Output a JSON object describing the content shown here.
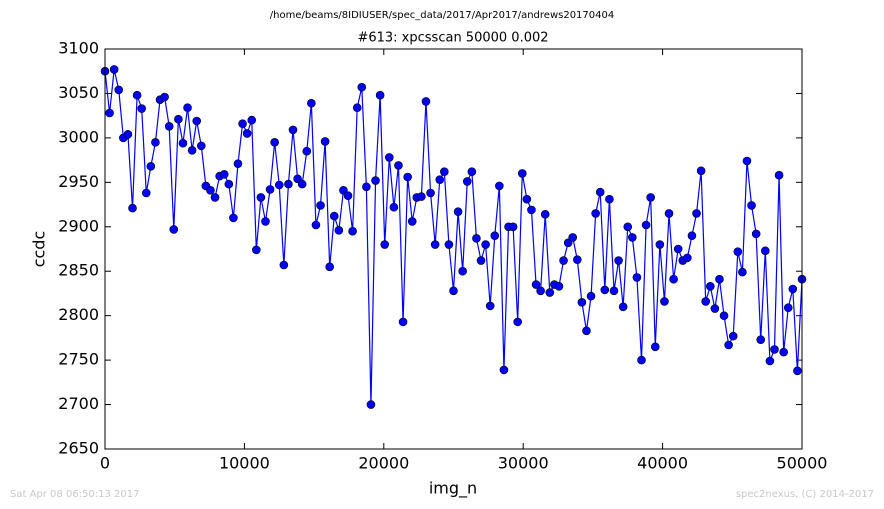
{
  "chart_data": {
    "type": "line",
    "subtitle": "/home/beams/8IDIUSER/spec_data/2017/Apr2017/andrews20170404",
    "title": "#613: xpcsscan 50000 0.002",
    "x_label": "img_n",
    "y_label": "ccdc",
    "annotations": [
      "Sat Apr 08 06:50:13 2017",
      "spec2nexus, (C) 2014-2017"
    ],
    "color": "#0000ff",
    "xlim": [
      0,
      50000
    ],
    "xticks": [
      0,
      10000,
      20000,
      30000,
      40000,
      50000
    ],
    "ylim": [
      2650,
      3100
    ],
    "yticks": [
      2650,
      2700,
      2750,
      2800,
      2850,
      2900,
      2950,
      3000,
      3050,
      3100
    ],
    "grid": false,
    "x": [
      0,
      329,
      658,
      987,
      1316,
      1645,
      1974,
      2303,
      2632,
      2961,
      3289,
      3618,
      3947,
      4276,
      4605,
      4934,
      5263,
      5592,
      5921,
      6250,
      6579,
      6908,
      7237,
      7566,
      7895,
      8224,
      8553,
      8882,
      9211,
      9539,
      9868,
      10197,
      10526,
      10855,
      11184,
      11513,
      11842,
      12171,
      12500,
      12829,
      13158,
      13487,
      13816,
      14145,
      14474,
      14803,
      15132,
      15461,
      15789,
      16118,
      16447,
      16776,
      17105,
      17434,
      17763,
      18092,
      18421,
      18750,
      19079,
      19408,
      19737,
      20066,
      20395,
      20724,
      21053,
      21382,
      21711,
      22039,
      22368,
      22697,
      23026,
      23355,
      23684,
      24013,
      24342,
      24671,
      25000,
      25329,
      25658,
      25987,
      26316,
      26645,
      26974,
      27303,
      27632,
      27961,
      28289,
      28618,
      28947,
      29276,
      29605,
      29934,
      30263,
      30592,
      30921,
      31250,
      31579,
      31908,
      32237,
      32566,
      32895,
      33224,
      33553,
      33882,
      34211,
      34539,
      34868,
      35197,
      35526,
      35855,
      36184,
      36513,
      36842,
      37171,
      37500,
      37829,
      38158,
      38487,
      38816,
      39145,
      39474,
      39803,
      40132,
      40461,
      40789,
      41118,
      41447,
      41776,
      42105,
      42434,
      42763,
      43092,
      43421,
      43750,
      44079,
      44408,
      44737,
      45066,
      45395,
      45724,
      46053,
      46382,
      46711,
      47039,
      47368,
      47697,
      48026,
      48355,
      48684,
      49013,
      49342,
      49671,
      50000
    ],
    "values": [
      3075,
      3028,
      3077,
      3054,
      3000,
      3004,
      2921,
      3048,
      3033,
      2938,
      2968,
      2995,
      3043,
      3046,
      3013,
      2897,
      3021,
      2994,
      3034,
      2986,
      3019,
      2991,
      2946,
      2941,
      2933,
      2957,
      2959,
      2948,
      2910,
      2971,
      3016,
      3005,
      3020,
      2874,
      2933,
      2906,
      2942,
      2995,
      2947,
      2857,
      2948,
      3009,
      2954,
      2948,
      2985,
      3039,
      2902,
      2924,
      2996,
      2855,
      2912,
      2896,
      2941,
      2935,
      2895,
      3034,
      3057,
      2945,
      2700,
      2952,
      3048,
      2880,
      2978,
      2922,
      2969,
      2793,
      2956,
      2906,
      2933,
      2934,
      3041,
      2938,
      2880,
      2953,
      2962,
      2880,
      2828,
      2917,
      2850,
      2951,
      2962,
      2887,
      2862,
      2880,
      2811,
      2890,
      2946,
      2739,
      2900,
      2900,
      2793,
      2960,
      2931,
      2919,
      2835,
      2828,
      2914,
      2826,
      2835,
      2833,
      2862,
      2882,
      2888,
      2863,
      2815,
      2783,
      2822,
      2915,
      2939,
      2829,
      2931,
      2828,
      2862,
      2810,
      2900,
      2888,
      2843,
      2750,
      2902,
      2933,
      2765,
      2880,
      2816,
      2915,
      2841,
      2875,
      2862,
      2865,
      2890,
      2915,
      2963,
      2816,
      2833,
      2808,
      2841,
      2800,
      2767,
      2777,
      2872,
      2849,
      2974,
      2924,
      2892,
      2773,
      2873,
      2749,
      2762,
      2958,
      2759,
      2809,
      2830,
      2738,
      2841
    ]
  }
}
